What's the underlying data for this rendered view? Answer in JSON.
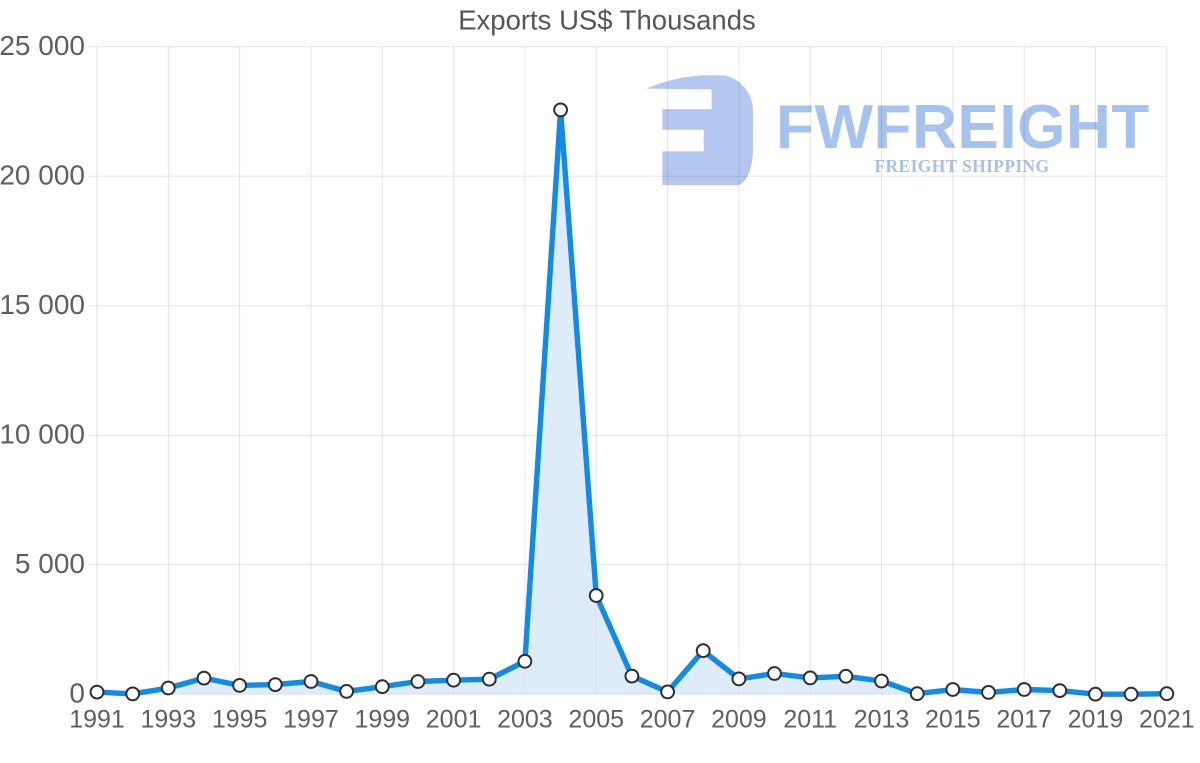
{
  "page": {
    "background_color": "#ffffff"
  },
  "chart_data": {
    "type": "area",
    "title": "Exports US$ Thousands",
    "x": [
      1991,
      1992,
      1993,
      1994,
      1995,
      1996,
      1997,
      1998,
      1999,
      2000,
      2001,
      2002,
      2003,
      2004,
      2005,
      2006,
      2007,
      2008,
      2009,
      2010,
      2011,
      2012,
      2013,
      2014,
      2015,
      2016,
      2017,
      2018,
      2019,
      2020,
      2021
    ],
    "series": [
      {
        "name": "Exports US$ Thousands",
        "values": [
          80,
          10,
          240,
          620,
          340,
          370,
          490,
          110,
          290,
          490,
          540,
          580,
          1270,
          22560,
          3810,
          700,
          90,
          1680,
          590,
          800,
          630,
          690,
          510,
          20,
          180,
          70,
          180,
          140,
          0,
          0,
          20
        ]
      }
    ],
    "xlabel": "",
    "ylabel": "",
    "ylim": [
      0,
      25000
    ],
    "y_ticks": [
      0,
      5000,
      10000,
      15000,
      20000,
      25000
    ],
    "y_tick_labels": [
      "0",
      "5 000",
      "10 000",
      "15 000",
      "20 000",
      "25 000"
    ],
    "x_tick_labels": [
      "1991",
      "1993",
      "1995",
      "1997",
      "1999",
      "2001",
      "2003",
      "2005",
      "2007",
      "2009",
      "2011",
      "2013",
      "2015",
      "2017",
      "2019",
      "2021"
    ],
    "grid": "on",
    "legend": "none",
    "colors": {
      "line": "#128ae8",
      "area_fill": "#d3e6f8",
      "marker_fill": "#ffffff",
      "marker_stroke": "#2e2e2e",
      "gridline": "#e5e5e5",
      "title_text": "#565656",
      "axis_text": "#5f5f5f"
    }
  },
  "watermark": {
    "brand": "FWFREIGHT",
    "tagline": "FREIGHT SHIPPING",
    "colors": {
      "glyph": "#b3c7f0",
      "brand": "#a6c2ee",
      "tagline": "#a7c1e8"
    }
  }
}
